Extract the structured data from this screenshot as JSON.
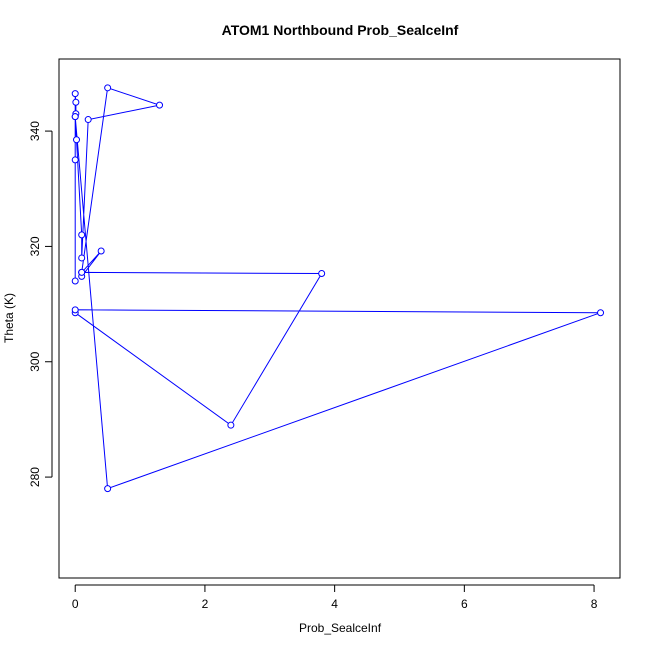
{
  "chart_data": {
    "type": "line",
    "title": "ATOM1 Northbound Prob_SealceInf",
    "xlabel": "Prob_SealceInf",
    "ylabel": "Theta (K)",
    "xlim": [
      -0.25,
      8.4
    ],
    "ylim": [
      262.5,
      352.5
    ],
    "xticks": [
      0,
      2,
      4,
      6,
      8
    ],
    "yticks": [
      280,
      300,
      320,
      340
    ],
    "xtick_labels": [
      "0",
      "2",
      "4",
      "6",
      "8"
    ],
    "ytick_labels": [
      "280",
      "300",
      "320",
      "340"
    ],
    "grid": false,
    "markers": "open-circle",
    "colors": {
      "series": "#0000ff",
      "axes": "#000000"
    },
    "series": [
      {
        "x": [
          0.0,
          0.0,
          0.0,
          0.01,
          0.01,
          0.0,
          0.02,
          0.1,
          0.1,
          0.2,
          1.3,
          0.5,
          0.1,
          0.1,
          0.4,
          0.1,
          0.1,
          3.8,
          2.4,
          0.0,
          0.0,
          8.1,
          0.5,
          0.0
        ],
        "y": [
          314.0,
          335.0,
          346.5,
          345.0,
          343.0,
          342.5,
          338.5,
          322.0,
          318.0,
          342.0,
          344.5,
          347.5,
          315.5,
          315.5,
          319.2,
          314.8,
          315.5,
          315.3,
          289.0,
          308.5,
          309.0,
          308.5,
          278.0,
          342.5
        ]
      }
    ]
  }
}
